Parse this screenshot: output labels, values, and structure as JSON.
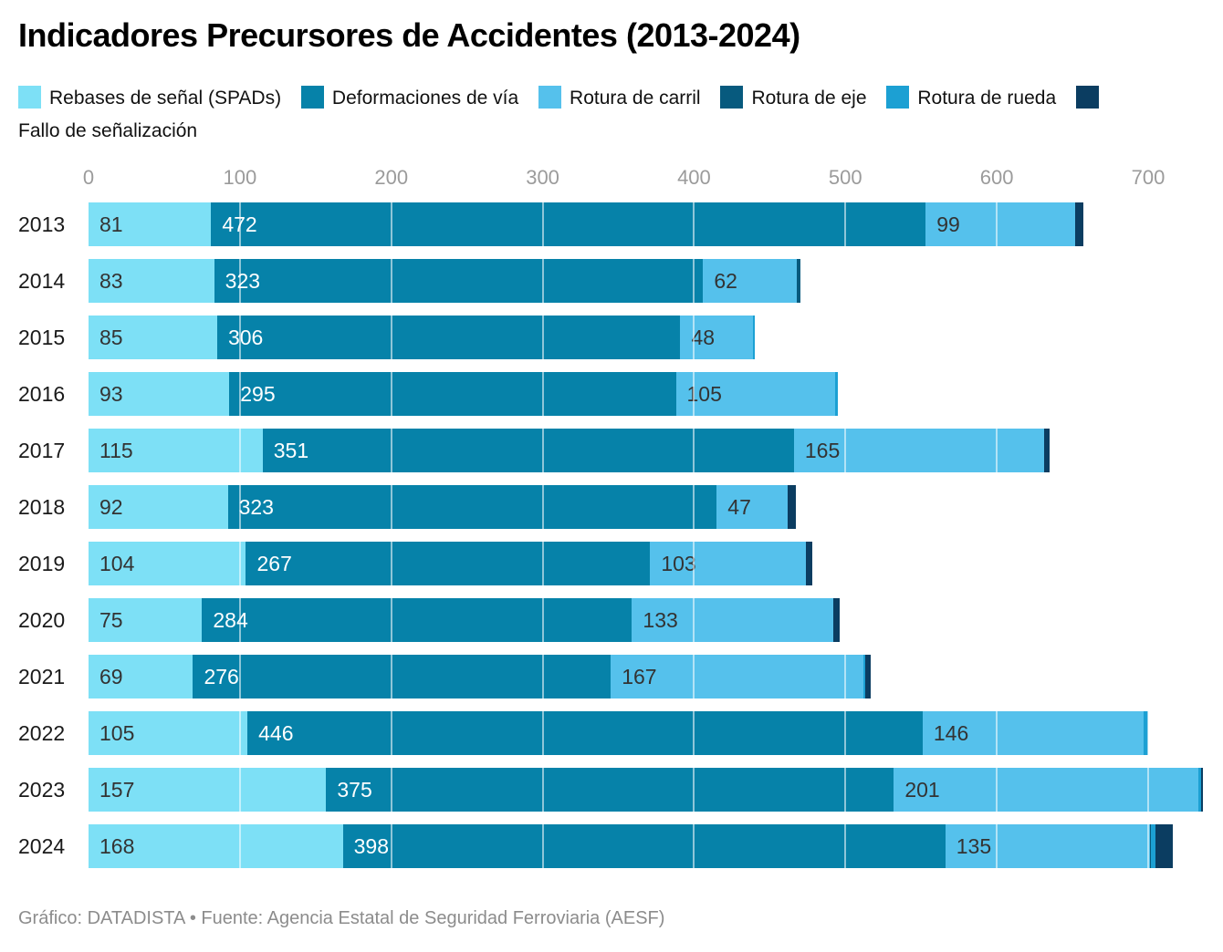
{
  "title": "Indicadores Precursores de Accidentes (2013-2024)",
  "footer": "Gráfico: DATADISTA • Fuente: Agencia Estatal de Seguridad Ferroviaria (AESF)",
  "colors": {
    "spads": "#7DE0F6",
    "via": "#0682A9",
    "carril": "#55C1EC",
    "eje": "#075A7E",
    "rueda": "#1CA0D3",
    "fallo": "#0B3D61",
    "label_dark": "#333333",
    "label_light": "#ffffff",
    "axis_tick": "#9b9b9b",
    "gridline": "rgba(255,255,255,0.55)"
  },
  "chart_data": {
    "type": "bar",
    "orientation": "horizontal",
    "stacked": true,
    "title": "Indicadores Precursores de Accidentes (2013-2024)",
    "xlabel": "",
    "ylabel": "",
    "xlim": [
      0,
      749
    ],
    "x_ticks": [
      0,
      100,
      200,
      300,
      400,
      500,
      600,
      700
    ],
    "grid": "vertical-white-over-bars",
    "legend_position": "top",
    "categories": [
      "2013",
      "2014",
      "2015",
      "2016",
      "2017",
      "2018",
      "2019",
      "2020",
      "2021",
      "2022",
      "2023",
      "2024"
    ],
    "series": [
      {
        "name": "Rebases de señal (SPADs)",
        "key": "spads",
        "labeled": true,
        "label_color": "dark",
        "values": [
          81,
          83,
          85,
          93,
          115,
          92,
          104,
          75,
          69,
          105,
          157,
          168
        ]
      },
      {
        "name": "Deformaciones de vía",
        "key": "via",
        "labeled": true,
        "label_color": "light",
        "values": [
          472,
          323,
          306,
          295,
          351,
          323,
          267,
          284,
          276,
          446,
          375,
          398
        ]
      },
      {
        "name": "Rotura de carril",
        "key": "carril",
        "labeled": true,
        "label_color": "dark",
        "values": [
          99,
          62,
          48,
          105,
          165,
          47,
          103,
          133,
          167,
          146,
          201,
          135
        ]
      },
      {
        "name": "Rotura de eje",
        "key": "eje",
        "labeled": false,
        "label_color": "light",
        "values": [
          0,
          2,
          0,
          0,
          0,
          0,
          0,
          0,
          0,
          0,
          0,
          1
        ]
      },
      {
        "name": "Rotura de rueda",
        "key": "rueda",
        "labeled": false,
        "label_color": "light",
        "values": [
          0,
          0,
          1,
          2,
          0,
          0,
          0,
          0,
          1,
          3,
          2,
          3
        ]
      },
      {
        "name": "Fallo de señalización",
        "key": "fallo",
        "labeled": false,
        "label_color": "light",
        "values": [
          5,
          0,
          0,
          0,
          4,
          5,
          4,
          4,
          4,
          0,
          1,
          11
        ]
      }
    ]
  }
}
